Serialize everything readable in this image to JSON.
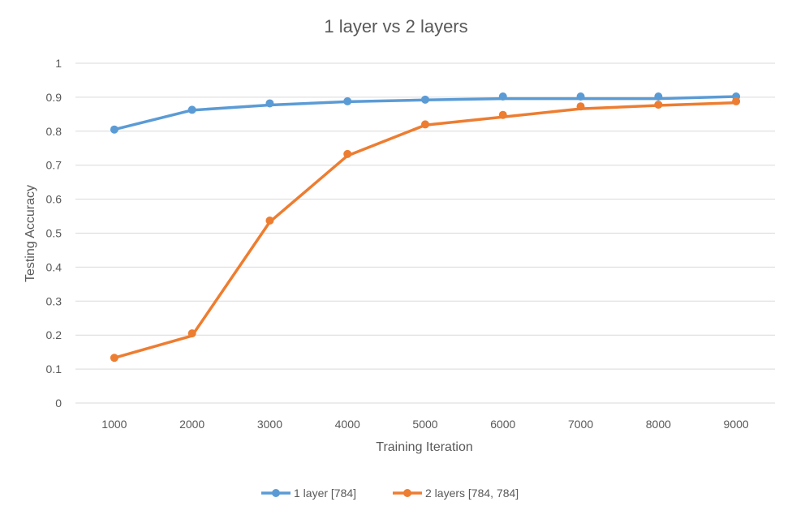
{
  "chart_data": {
    "type": "line",
    "title": "1 layer vs 2 layers",
    "xlabel": "Training Iteration",
    "ylabel": "Testing Accuracy",
    "categories": [
      "1000",
      "2000",
      "3000",
      "4000",
      "5000",
      "6000",
      "7000",
      "8000",
      "9000"
    ],
    "ylim": [
      0,
      1
    ],
    "yticks": [
      "0",
      "0.1",
      "0.2",
      "0.3",
      "0.4",
      "0.5",
      "0.6",
      "0.7",
      "0.8",
      "0.9",
      "1"
    ],
    "grid": true,
    "legend_position": "bottom",
    "series": [
      {
        "name": "1 layer [784]",
        "color": "#5b9bd5",
        "values": [
          0.805,
          0.863,
          0.882,
          0.888,
          0.893,
          0.902,
          0.902,
          0.902,
          0.902
        ],
        "line": [
          0.805,
          0.862,
          0.877,
          0.887,
          0.892,
          0.896,
          0.896,
          0.896,
          0.902
        ]
      },
      {
        "name": "2 layers [784, 784]",
        "color": "#ed7d31",
        "values": [
          0.133,
          0.205,
          0.537,
          0.733,
          0.82,
          0.848,
          0.873,
          0.878,
          0.888
        ],
        "line": [
          0.133,
          0.198,
          0.533,
          0.728,
          0.818,
          0.842,
          0.866,
          0.876,
          0.884
        ]
      }
    ]
  }
}
